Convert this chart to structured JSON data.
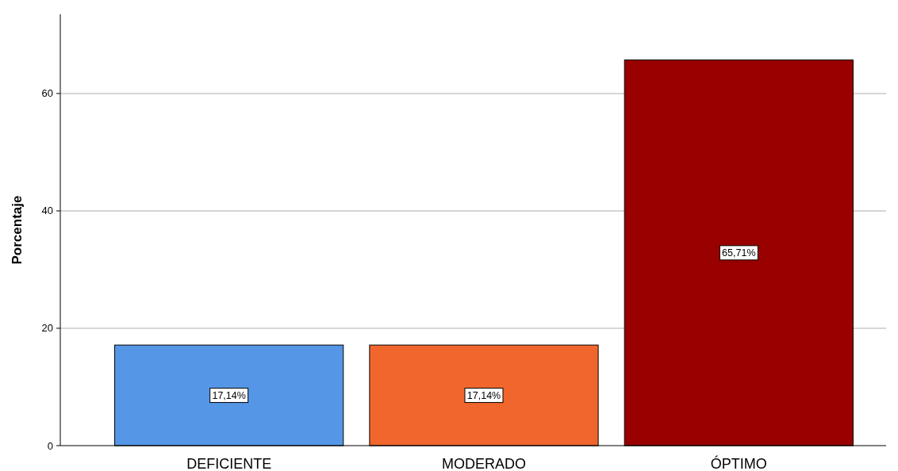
{
  "chart_data": {
    "type": "bar",
    "ylabel": "Porcentaje",
    "categories": [
      "DEFICIENTE",
      "MODERADO",
      "ÓPTIMO"
    ],
    "values": [
      17.14,
      17.14,
      65.71
    ],
    "colors": [
      "#5596e6",
      "#f1662c",
      "#990000"
    ],
    "value_labels": [
      "17,14%",
      "17,14%",
      "65,71%"
    ],
    "ylim": [
      0,
      73.5
    ],
    "yticks": [
      0,
      20,
      40,
      60
    ],
    "grid": "y"
  }
}
